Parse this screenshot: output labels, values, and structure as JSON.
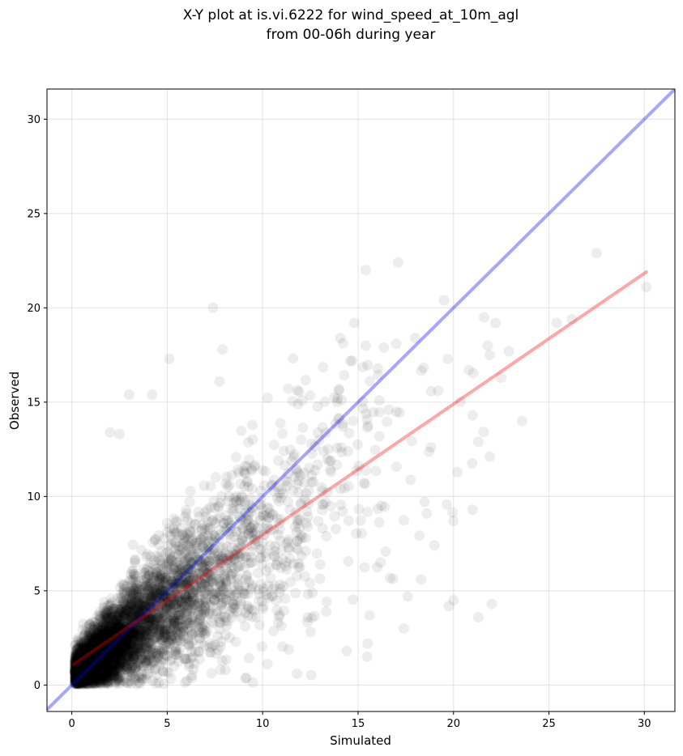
{
  "chart_data": {
    "type": "scatter",
    "title_line1": "X-Y plot at is.vi.6222 for wind_speed_at_10m_agl",
    "title_line2": "from 00-06h during year",
    "xlabel": "Simulated",
    "ylabel": "Observed",
    "xlim": [
      -1.3,
      31.6
    ],
    "ylim": [
      -1.4,
      31.6
    ],
    "xticks": [
      0,
      5,
      10,
      15,
      20,
      25,
      30
    ],
    "yticks": [
      0,
      5,
      10,
      15,
      20,
      25,
      30
    ],
    "grid": true,
    "point_color": "#000000",
    "point_alpha": 0.07,
    "identity_line": {
      "color": "#0000ff",
      "alpha": 0.35,
      "from": [
        -1.3,
        -1.3
      ],
      "to": [
        31.6,
        31.6
      ]
    },
    "fit_line": {
      "color": "#ff0000",
      "alpha": 0.35,
      "from": [
        0.1,
        1.1
      ],
      "to": [
        30.1,
        21.9
      ]
    },
    "outliers": [
      [
        30.1,
        21.1
      ],
      [
        27.5,
        22.9
      ],
      [
        17.1,
        22.4
      ],
      [
        15.4,
        22.0
      ],
      [
        19.5,
        20.4
      ],
      [
        21.6,
        19.5
      ],
      [
        22.2,
        19.2
      ],
      [
        21.9,
        17.5
      ],
      [
        21.8,
        18.0
      ],
      [
        23.6,
        14.0
      ],
      [
        20.8,
        16.7
      ],
      [
        21.0,
        14.3
      ],
      [
        22.9,
        17.7
      ],
      [
        21.3,
        12.9
      ],
      [
        21.9,
        12.1
      ],
      [
        21.0,
        9.3
      ],
      [
        20.0,
        8.7
      ],
      [
        19.0,
        7.4
      ],
      [
        20.0,
        4.5
      ],
      [
        22.0,
        4.3
      ],
      [
        21.3,
        3.6
      ],
      [
        18.3,
        5.6
      ],
      [
        17.4,
        3.0
      ],
      [
        17.6,
        4.7
      ],
      [
        15.6,
        3.7
      ],
      [
        14.4,
        1.8
      ],
      [
        15.5,
        2.2
      ],
      [
        11.8,
        0.6
      ],
      [
        7.4,
        20.0
      ],
      [
        7.9,
        17.8
      ],
      [
        5.1,
        17.3
      ],
      [
        3.0,
        15.4
      ],
      [
        4.2,
        15.4
      ],
      [
        2.0,
        13.4
      ],
      [
        2.5,
        13.3
      ],
      [
        26.2,
        19.4
      ],
      [
        25.4,
        19.2
      ],
      [
        22.5,
        16.3
      ],
      [
        20.2,
        11.3
      ],
      [
        18.6,
        9.1
      ],
      [
        19.2,
        15.6
      ],
      [
        18.0,
        18.4
      ],
      [
        17.0,
        18.1
      ],
      [
        16.6,
        14.6
      ],
      [
        14.8,
        19.2
      ],
      [
        15.4,
        18.0
      ]
    ]
  }
}
